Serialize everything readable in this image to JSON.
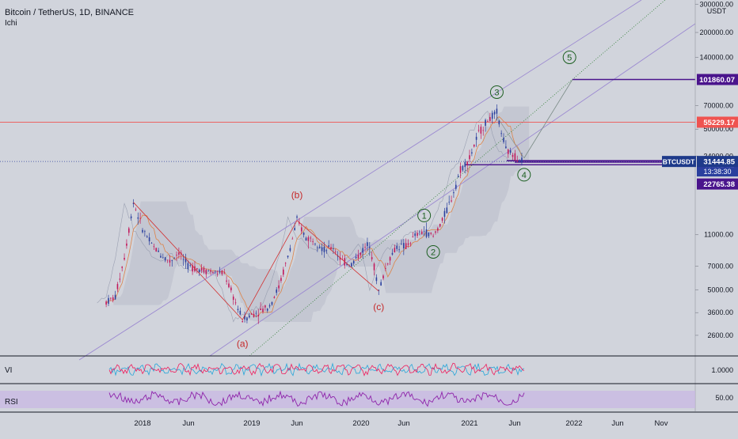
{
  "header": {
    "title": "Bitcoin / TetherUS, 1D, BINANCE",
    "indicator": "Ichi"
  },
  "colors": {
    "background": "#d1d4dc",
    "candle_up": "#2a3f9e",
    "candle_down": "#c2185b",
    "channel": "#9c8ad1",
    "wave_line": "#d32f2f",
    "elliott_green": "#1b5e20",
    "level_purple": "#4a148c",
    "horizontal_red": "#ef5350",
    "vi_plus": "#26a6d9",
    "vi_minus": "#ef1c5c",
    "rsi": "#8e24aa",
    "rsi_band": "#c9b6e4"
  },
  "chart_data": {
    "type": "candlestick",
    "symbol": "BTCUSDT",
    "scale": "log",
    "ylim": [
      2000,
      300000
    ],
    "y_ticks": [
      300000,
      200000,
      140000,
      70000,
      50000,
      34000,
      11000,
      7000,
      5000,
      3600,
      2600
    ],
    "y_tick_labels": [
      "300000.00",
      "200000.00",
      "140000.00",
      "70000.00",
      "50000.00",
      "34000.00",
      "11000.00",
      "7000.00",
      "5000.00",
      "3600.00",
      "2600.00"
    ],
    "y_unit": "USDT",
    "x_labels": [
      "2018",
      "Jun",
      "2019",
      "Jun",
      "2020",
      "Jun",
      "2021",
      "Jun",
      "2022",
      "Jun",
      "Nov"
    ],
    "price_path": [
      [
        "2017-09",
        4200
      ],
      [
        "2017-10",
        4500
      ],
      [
        "2017-11",
        8000
      ],
      [
        "2017-12",
        17500
      ],
      [
        "2018-01",
        12000
      ],
      [
        "2018-02",
        9500
      ],
      [
        "2018-03",
        8300
      ],
      [
        "2018-04",
        7500
      ],
      [
        "2018-05",
        8600
      ],
      [
        "2018-06",
        7000
      ],
      [
        "2018-07",
        6800
      ],
      [
        "2018-08",
        6600
      ],
      [
        "2018-09",
        6400
      ],
      [
        "2018-10",
        6300
      ],
      [
        "2018-11",
        4500
      ],
      [
        "2018-12",
        3250
      ],
      [
        "2019-01",
        3500
      ],
      [
        "2019-02",
        3700
      ],
      [
        "2019-03",
        4000
      ],
      [
        "2019-04",
        5200
      ],
      [
        "2019-05",
        8000
      ],
      [
        "2019-06",
        13500
      ],
      [
        "2019-07",
        10500
      ],
      [
        "2019-08",
        10200
      ],
      [
        "2019-09",
        8800
      ],
      [
        "2019-10",
        9200
      ],
      [
        "2019-11",
        7500
      ],
      [
        "2019-12",
        7200
      ],
      [
        "2020-01",
        8500
      ],
      [
        "2020-02",
        9800
      ],
      [
        "2020-03",
        4900
      ],
      [
        "2020-04",
        7500
      ],
      [
        "2020-05",
        9300
      ],
      [
        "2020-06",
        9300
      ],
      [
        "2020-07",
        10800
      ],
      [
        "2020-08",
        11600
      ],
      [
        "2020-09",
        10700
      ],
      [
        "2020-10",
        13500
      ],
      [
        "2020-11",
        18500
      ],
      [
        "2020-12",
        28000
      ],
      [
        "2021-01",
        33000
      ],
      [
        "2021-02",
        47000
      ],
      [
        "2021-03",
        57000
      ],
      [
        "2021-04",
        63000
      ],
      [
        "2021-05",
        37000
      ],
      [
        "2021-06",
        34000
      ],
      [
        "2021-07",
        31444
      ]
    ],
    "horizontal_levels": [
      {
        "label": "55229.17",
        "value": 55229.17,
        "color": "#ef5350"
      },
      {
        "label": "101860.07",
        "value": 101860.07,
        "color": "#4a148c"
      },
      {
        "label": "31135.42",
        "value": 31135.42,
        "color": "#4a148c"
      },
      {
        "label": "28986.96",
        "value": 28986.96,
        "color": "#4a148c"
      },
      {
        "label": "22765.38",
        "value": 22765.38,
        "color": "#4a148c"
      }
    ],
    "current_price": {
      "symbol": "BTCUSDT",
      "value": "31444.85",
      "countdown": "13:38:30"
    },
    "elliott_labels": [
      {
        "text": "(a)",
        "date": "2018-12",
        "price": 2300
      },
      {
        "text": "(b)",
        "date": "2019-06",
        "price": 19500
      },
      {
        "text": "(c)",
        "date": "2020-03",
        "price": 3900
      },
      {
        "text": "1",
        "date": "2020-08",
        "price": 14500
      },
      {
        "text": "2",
        "date": "2020-09",
        "price": 8600
      },
      {
        "text": "3",
        "date": "2021-04",
        "price": 85000
      },
      {
        "text": "4",
        "date": "2021-07",
        "price": 26000
      },
      {
        "text": "5",
        "date": "2021-12",
        "price": 140000
      }
    ],
    "indicators": {
      "vi": {
        "label": "VI",
        "tick": "1.0000"
      },
      "rsi": {
        "label": "RSI",
        "tick": "50.00"
      }
    }
  }
}
